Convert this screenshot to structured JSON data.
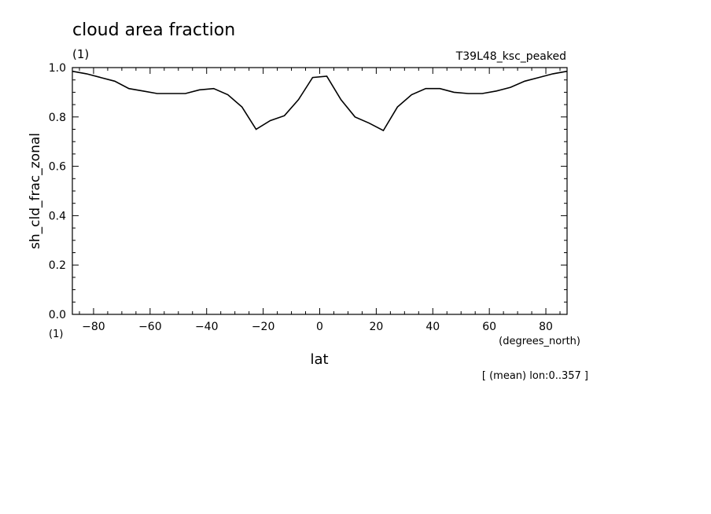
{
  "chart_data": {
    "type": "line",
    "title": "cloud area fraction",
    "title_units": "(1)",
    "run_label": "T39L48_ksc_peaked",
    "xlabel": "lat",
    "xunits": "(degrees_north)",
    "ylabel": "sh_cld_frac_zonal",
    "yunits": "(1)",
    "footnote": "[ (mean) lon:0..357 ]",
    "xlim": [
      -87.5,
      87.5
    ],
    "ylim": [
      0.0,
      1.0
    ],
    "xticks": [
      -80,
      -60,
      -40,
      -20,
      0,
      20,
      40,
      60,
      80
    ],
    "xtick_labels": [
      "−80",
      "−60",
      "−40",
      "−20",
      "0",
      "20",
      "40",
      "60",
      "80"
    ],
    "yticks": [
      0.0,
      0.2,
      0.4,
      0.6,
      0.8,
      1.0
    ],
    "ytick_labels": [
      "0.0",
      "0.2",
      "0.4",
      "0.6",
      "0.8",
      "1.0"
    ],
    "grid": false,
    "series": [
      {
        "x": [
          -87.5,
          -82.5,
          -77.5,
          -72.5,
          -67.5,
          -62.5,
          -57.5,
          -52.5,
          -47.5,
          -42.5,
          -37.5,
          -32.5,
          -27.5,
          -22.5,
          -17.5,
          -12.5,
          -7.5,
          -2.5,
          2.5,
          7.5,
          12.5,
          17.5,
          22.5,
          27.5,
          32.5,
          37.5,
          42.5,
          47.5,
          52.5,
          57.5,
          62.5,
          67.5,
          72.5,
          77.5,
          82.5,
          87.5
        ],
        "y": [
          0.985,
          0.975,
          0.96,
          0.945,
          0.915,
          0.905,
          0.895,
          0.895,
          0.895,
          0.91,
          0.915,
          0.89,
          0.84,
          0.75,
          0.785,
          0.805,
          0.87,
          0.96,
          0.965,
          0.87,
          0.8,
          0.775,
          0.745,
          0.84,
          0.89,
          0.915,
          0.915,
          0.9,
          0.895,
          0.895,
          0.905,
          0.92,
          0.945,
          0.96,
          0.975,
          0.985
        ]
      }
    ]
  }
}
